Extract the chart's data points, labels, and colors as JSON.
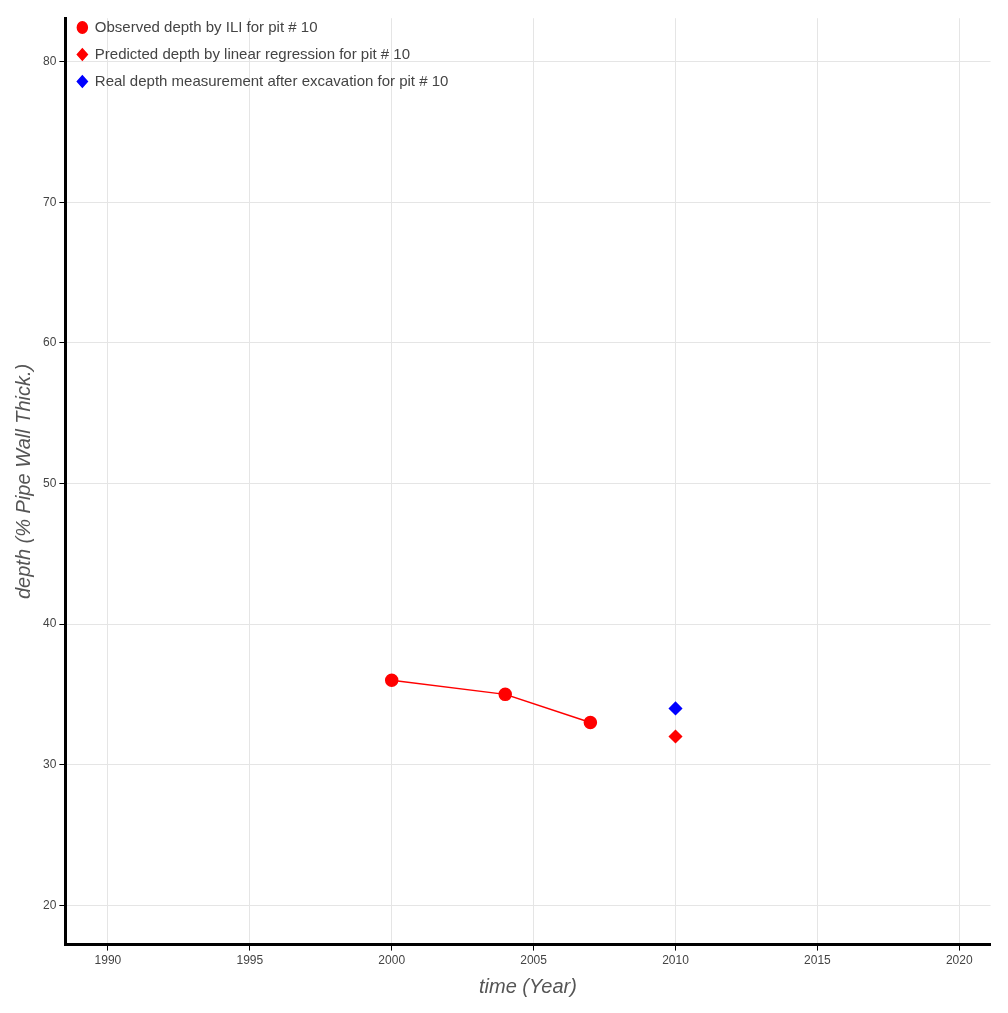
{
  "chart_data": {
    "type": "scatter",
    "xlabel": "time (Year)",
    "ylabel": "depth (% Pipe Wall Thick.)",
    "xlim": [
      1988.5,
      2021.1
    ],
    "xticks": [
      1990,
      1995,
      2000,
      2005,
      2010,
      2015,
      2020
    ],
    "ylim": [
      17.2,
      83.1
    ],
    "yticks": [
      20,
      30,
      40,
      50,
      60,
      70,
      80
    ],
    "grid": true,
    "legend": "top left",
    "series": [
      {
        "name": "Observed depth by ILI for pit # 10",
        "type": "line",
        "marker": "circle",
        "color": "#ff0000",
        "x": [
          2000,
          2004,
          2007
        ],
        "values": [
          36,
          35,
          33
        ]
      },
      {
        "name": "Predicted depth by linear regression for pit # 10",
        "type": "scatter",
        "marker": "diamond",
        "color": "#ff0000",
        "x": [
          2010
        ],
        "values": [
          32
        ]
      },
      {
        "name": "Real depth measurement after excavation for pit # 10",
        "type": "scatter",
        "marker": "diamond",
        "color": "#0000ff",
        "x": [
          2010
        ],
        "values": [
          34
        ]
      }
    ]
  }
}
